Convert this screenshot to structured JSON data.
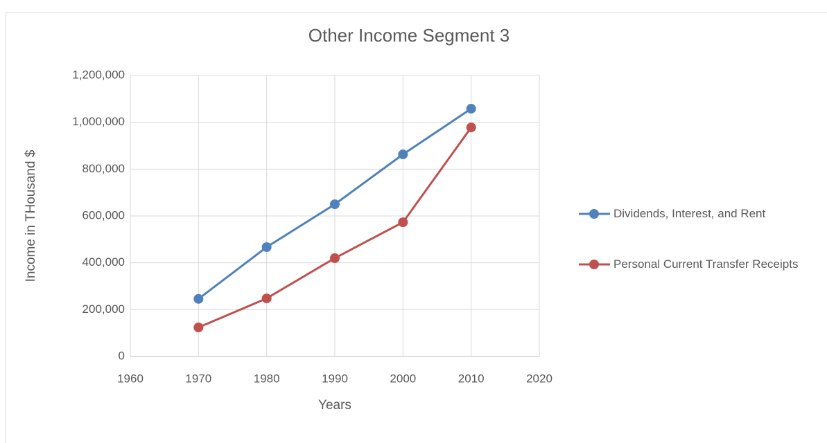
{
  "chart_data": {
    "type": "line",
    "title": "Other Income Segment 3",
    "x_label": "Years",
    "y_label": "Income in THousand $",
    "x": [
      1970,
      1980,
      1990,
      2000,
      2010
    ],
    "series": [
      {
        "name": "Dividends, Interest, and Rent",
        "color": "#4f81bd",
        "values": [
          246000,
          467000,
          650000,
          863000,
          1058000
        ]
      },
      {
        "name": "Personal Current Transfer Receipts",
        "color": "#c0504d",
        "values": [
          124000,
          248000,
          420000,
          573000,
          978000
        ]
      }
    ],
    "xlim": [
      1960,
      2020
    ],
    "xticks": [
      1960,
      1970,
      1980,
      1990,
      2000,
      2010,
      2020
    ],
    "ylim": [
      0,
      1200000
    ],
    "yticks": [
      0,
      {
        "value": 200000,
        "label": "200,000"
      },
      {
        "value": 400000,
        "label": "400,000"
      },
      {
        "value": 600000,
        "label": "600,000"
      },
      {
        "value": 800000,
        "label": "800,000"
      },
      {
        "value": 1000000,
        "label": "1,000,000"
      },
      {
        "value": 1200000,
        "label": "1,200,000"
      }
    ],
    "grid": true,
    "legend": "right"
  }
}
